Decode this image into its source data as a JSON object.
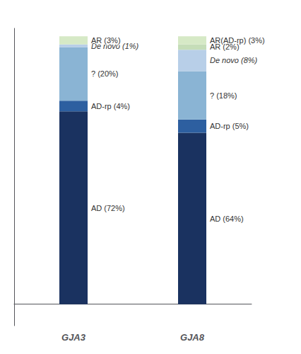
{
  "chart_data": {
    "type": "bar",
    "stacked": true,
    "data_labels": true,
    "grid": false,
    "tick_labels": "x",
    "categories": [
      "GJA3",
      "GJA8"
    ],
    "ylim": [
      -8,
      103
    ],
    "series": [
      {
        "color": "#1a3260",
        "values": [
          72,
          64
        ],
        "value_labels": [
          "AD (72%)",
          "AD (64%)"
        ]
      },
      {
        "color": "#2d5fa0",
        "values": [
          4,
          5
        ],
        "value_labels": [
          "AD-rp (4%)",
          "AD-rp (5%)"
        ]
      },
      {
        "color": "#8ab4d4",
        "values": [
          20,
          18
        ],
        "value_labels": [
          "? (20%)",
          "? (18%)"
        ]
      },
      {
        "color": "#b8cfe8",
        "values": [
          1,
          8
        ],
        "value_labels": [
          "De novo (1%)",
          "De novo (8%)"
        ]
      },
      {
        "colors": [
          "#d6e9c6",
          "#c5ddb8"
        ],
        "values": [
          3,
          2
        ],
        "value_labels": [
          "AR (3%)",
          "AR (2%)"
        ]
      },
      {
        "color": "#d6e9c6",
        "values": [
          null,
          3
        ],
        "value_labels": [
          null,
          "AR(AD-rp) (3%)"
        ]
      }
    ]
  }
}
